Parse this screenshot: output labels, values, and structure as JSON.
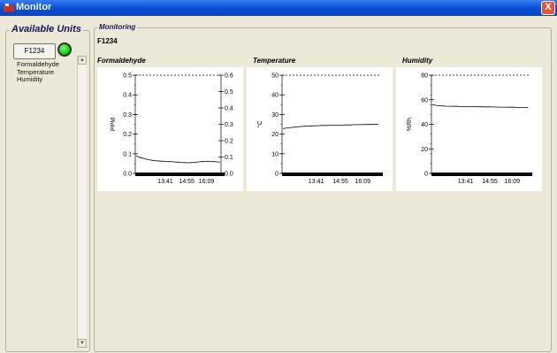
{
  "window": {
    "title": "Monitor",
    "close_glyph": "X"
  },
  "available_units": {
    "label": "Available Units",
    "unit_button": "F1234",
    "status_color": "#10d010",
    "sensors": [
      "Formaldehyde",
      "Temperature",
      "Humidity"
    ]
  },
  "monitoring": {
    "label": "Monitoring",
    "unit_name": "F1234",
    "charts": [
      {
        "label": "Formaldehyde",
        "ylabel": "PPM",
        "ylim": [
          0,
          0.5
        ],
        "yticks": [
          "0.5",
          "0.4",
          "0.3",
          "0.2",
          "0.1",
          "0.0"
        ],
        "right_ylim": [
          0,
          0.6
        ],
        "right_yticks": [
          "0.6",
          "0.5",
          "0.4",
          "0.3",
          "0.2",
          "0.1",
          "0.0"
        ],
        "xticks": [
          "13:41",
          "14:55",
          "16:09"
        ],
        "values": [
          0.09,
          0.085,
          0.08,
          0.078,
          0.076,
          0.072,
          0.07,
          0.068,
          0.066,
          0.065,
          0.064,
          0.063,
          0.062,
          0.062,
          0.061,
          0.06,
          0.06,
          0.06,
          0.059,
          0.058,
          0.057,
          0.057,
          0.056,
          0.055,
          0.055,
          0.054,
          0.055,
          0.055,
          0.056,
          0.057,
          0.058,
          0.059,
          0.06,
          0.06,
          0.061,
          0.062,
          0.061,
          0.06,
          0.06,
          0.059,
          0.058,
          0.058
        ]
      },
      {
        "label": "Temperature",
        "ylabel": "°C",
        "ylim": [
          0,
          50
        ],
        "yticks": [
          "50",
          "40",
          "30",
          "20",
          "10",
          "0"
        ],
        "xticks": [
          "13:41",
          "14:55",
          "16:09"
        ],
        "values": [
          22.8,
          23.0,
          23.2,
          23.4,
          23.5,
          23.7,
          23.8,
          23.9,
          24.0,
          24.1,
          24.2,
          24.2,
          24.3,
          24.3,
          24.4,
          24.4,
          24.4,
          24.5,
          24.5,
          24.5,
          24.6,
          24.6,
          24.6,
          24.7,
          24.7,
          24.7,
          24.8,
          24.8,
          24.8,
          24.8,
          24.9,
          24.9,
          24.9,
          24.9,
          25.0,
          25.0
        ]
      },
      {
        "label": "Humidity",
        "ylabel": "%Rh",
        "ylim": [
          0,
          80
        ],
        "yticks": [
          "80",
          "60",
          "40",
          "20",
          "0"
        ],
        "xticks": [
          "13:41",
          "14:55",
          "16:09"
        ],
        "values": [
          56.0,
          55.6,
          55.2,
          55.0,
          54.9,
          54.8,
          54.7,
          54.7,
          54.6,
          54.6,
          54.5,
          54.5,
          54.5,
          54.4,
          54.4,
          54.4,
          54.3,
          54.3,
          54.3,
          54.2,
          54.2,
          54.2,
          54.1,
          54.1,
          54.0,
          54.0,
          54.0,
          54.0,
          53.9,
          53.9,
          53.9,
          53.8,
          53.8,
          53.8,
          53.7,
          53.7
        ]
      }
    ]
  }
}
